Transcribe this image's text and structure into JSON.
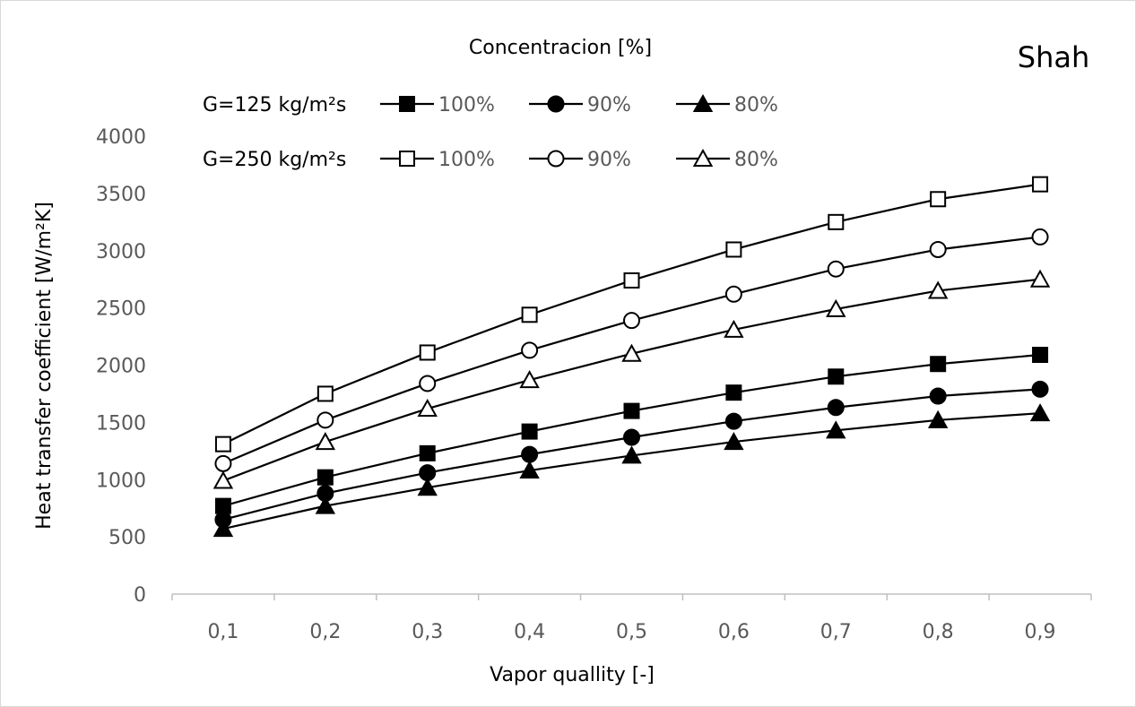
{
  "chart_data": {
    "type": "line",
    "title": "Shah",
    "xlabel": "Vapor quallity [-]",
    "ylabel": "Heat transfer coefficient [W/m²K]",
    "legend_title": "Concentracion [%]",
    "legend_placement": "top",
    "x": [
      "0,1",
      "0,2",
      "0,3",
      "0,4",
      "0,5",
      "0,6",
      "0,7",
      "0,8",
      "0,9"
    ],
    "ylim": [
      0,
      4000
    ],
    "yticks": [
      0,
      500,
      1000,
      1500,
      2000,
      2500,
      3000,
      3500,
      4000
    ],
    "grid": false,
    "groups": [
      {
        "label": "G=125 kg/m²s"
      },
      {
        "label": "G=250 kg/m²s"
      }
    ],
    "series": [
      {
        "name": "100%",
        "group": 0,
        "marker": "square-filled",
        "values": [
          770,
          1020,
          1230,
          1420,
          1600,
          1760,
          1900,
          2010,
          2090
        ]
      },
      {
        "name": "90%",
        "group": 0,
        "marker": "circle-filled",
        "values": [
          650,
          880,
          1060,
          1220,
          1370,
          1510,
          1630,
          1730,
          1790
        ]
      },
      {
        "name": "80%",
        "group": 0,
        "marker": "triangle-filled",
        "values": [
          570,
          770,
          930,
          1080,
          1210,
          1330,
          1430,
          1520,
          1580
        ]
      },
      {
        "name": "100%",
        "group": 1,
        "marker": "square-open",
        "values": [
          1310,
          1750,
          2110,
          2440,
          2740,
          3010,
          3250,
          3450,
          3580
        ]
      },
      {
        "name": "90%",
        "group": 1,
        "marker": "circle-open",
        "values": [
          1140,
          1520,
          1840,
          2130,
          2390,
          2620,
          2840,
          3010,
          3120
        ]
      },
      {
        "name": "80%",
        "group": 1,
        "marker": "triangle-open",
        "values": [
          990,
          1330,
          1620,
          1870,
          2100,
          2310,
          2490,
          2650,
          2750
        ]
      }
    ]
  }
}
